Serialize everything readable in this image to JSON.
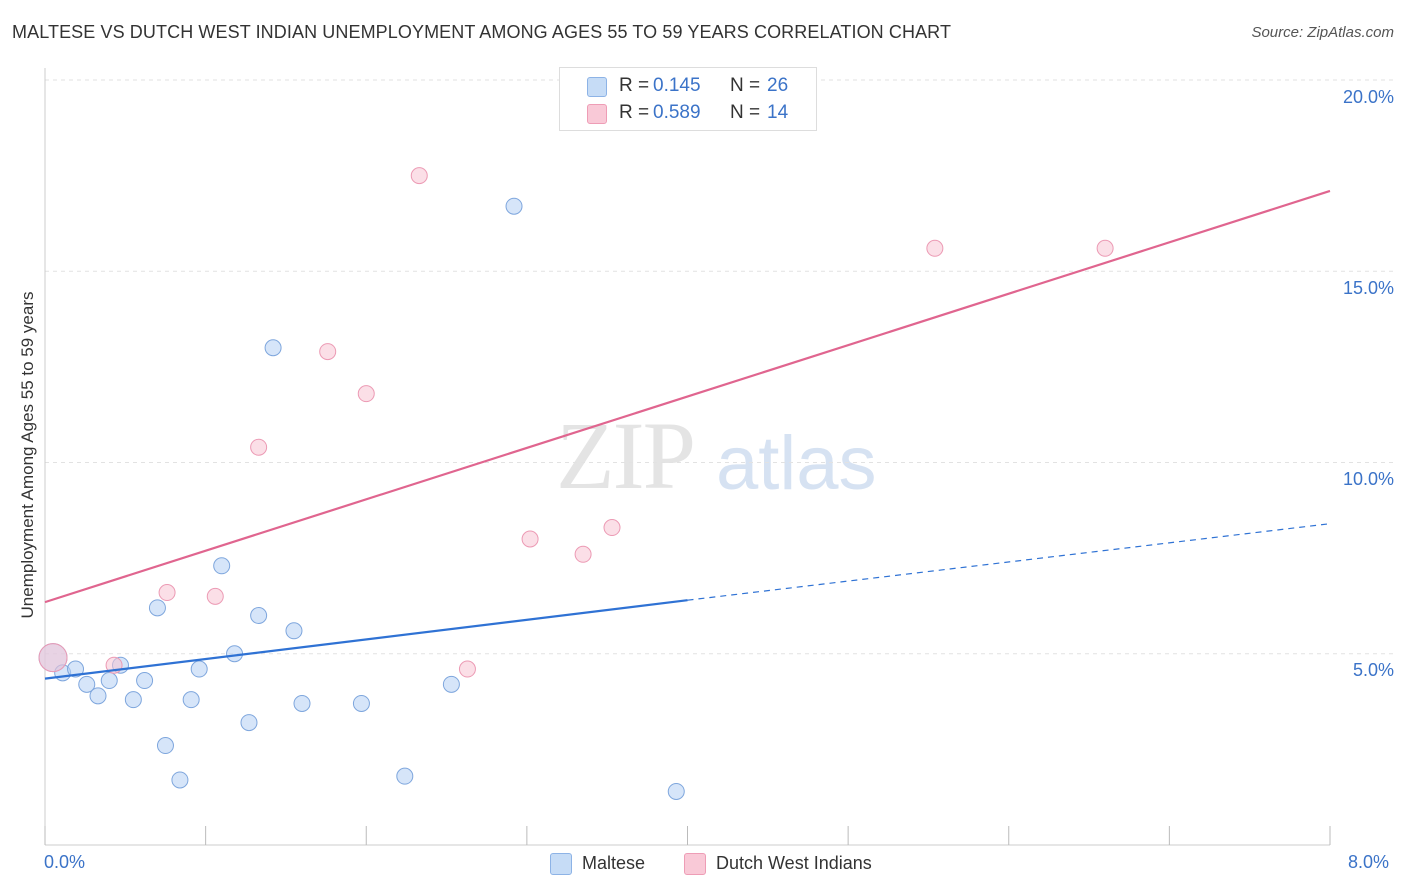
{
  "title": "MALTESE VS DUTCH WEST INDIAN UNEMPLOYMENT AMONG AGES 55 TO 59 YEARS CORRELATION CHART",
  "source": "Source: ZipAtlas.com",
  "watermark": {
    "zip": "ZIP",
    "atlas": "atlas"
  },
  "legend_top": {
    "rows": [
      {
        "r_label": "R =",
        "r_value": "0.145",
        "n_label": "N =",
        "n_value": "26",
        "color": "#a9c7ee",
        "fill": "#c6dcf6"
      },
      {
        "r_label": "R =",
        "r_value": "0.589",
        "n_label": "N =",
        "n_value": "14",
        "color": "#f0a5bd",
        "fill": "#f9c9d7"
      }
    ]
  },
  "legend_bottom": [
    {
      "label": "Maltese",
      "fill": "#c6dcf6",
      "stroke": "#8db3e6"
    },
    {
      "label": "Dutch West Indians",
      "fill": "#f9c9d7",
      "stroke": "#ee9db6"
    }
  ],
  "colors": {
    "maltese_line": "#2f72d4",
    "dutch_line": "#e0658f",
    "maltese_point_fill": "rgba(180,208,244,0.55)",
    "maltese_point_stroke": "#7ea6dd",
    "dutch_point_fill": "rgba(248,196,212,0.55)",
    "dutch_point_stroke": "#ec9ab4",
    "grid": "#e2e2e2",
    "tick_label": "#3b73c8"
  },
  "chart_data": {
    "type": "scatter",
    "title": "MALTESE VS DUTCH WEST INDIAN UNEMPLOYMENT AMONG AGES 55 TO 59 YEARS CORRELATION CHART",
    "xlabel": "",
    "ylabel": "Unemployment Among Ages 55 to 59 years",
    "xlim": [
      0,
      8
    ],
    "ylim": [
      0,
      20
    ],
    "x_tick_labels": [
      {
        "value": 0,
        "label": "0.0%"
      },
      {
        "value": 8,
        "label": "8.0%"
      }
    ],
    "y_tick_labels": [
      {
        "value": 5,
        "label": "5.0%"
      },
      {
        "value": 10,
        "label": "10.0%"
      },
      {
        "value": 15,
        "label": "15.0%"
      },
      {
        "value": 20,
        "label": "20.0%"
      }
    ],
    "grid": true,
    "series": [
      {
        "name": "Maltese",
        "R": 0.145,
        "N": 26,
        "points": [
          [
            0.05,
            4.9
          ],
          [
            0.11,
            4.5
          ],
          [
            0.19,
            4.6
          ],
          [
            0.26,
            4.2
          ],
          [
            0.33,
            3.9
          ],
          [
            0.4,
            4.3
          ],
          [
            0.47,
            4.7
          ],
          [
            0.55,
            3.8
          ],
          [
            0.62,
            4.3
          ],
          [
            0.7,
            6.2
          ],
          [
            0.75,
            2.6
          ],
          [
            0.84,
            1.7
          ],
          [
            0.91,
            3.8
          ],
          [
            0.96,
            4.6
          ],
          [
            1.1,
            7.3
          ],
          [
            1.18,
            5.0
          ],
          [
            1.27,
            3.2
          ],
          [
            1.33,
            6.0
          ],
          [
            1.42,
            13.0
          ],
          [
            1.55,
            5.6
          ],
          [
            1.6,
            3.7
          ],
          [
            1.97,
            3.7
          ],
          [
            2.24,
            1.8
          ],
          [
            2.53,
            4.2
          ],
          [
            2.92,
            16.7
          ],
          [
            3.93,
            1.4
          ]
        ],
        "trend": {
          "x0": 0.0,
          "y0": 4.35,
          "x1": 4.0,
          "y1": 6.4,
          "dashed_x1": 8.0,
          "dashed_y1": 8.4
        }
      },
      {
        "name": "Dutch West Indians",
        "R": 0.589,
        "N": 14,
        "points": [
          [
            0.05,
            4.9
          ],
          [
            0.43,
            4.7
          ],
          [
            0.76,
            6.6
          ],
          [
            1.06,
            6.5
          ],
          [
            1.33,
            10.4
          ],
          [
            1.76,
            12.9
          ],
          [
            2.0,
            11.8
          ],
          [
            2.33,
            17.5
          ],
          [
            2.63,
            4.6
          ],
          [
            3.02,
            8.0
          ],
          [
            3.35,
            7.6
          ],
          [
            3.53,
            8.3
          ],
          [
            5.54,
            15.6
          ],
          [
            6.6,
            15.6
          ]
        ],
        "trend": {
          "x0": 0.0,
          "y0": 6.35,
          "x1": 8.0,
          "y1": 17.1
        }
      }
    ]
  }
}
